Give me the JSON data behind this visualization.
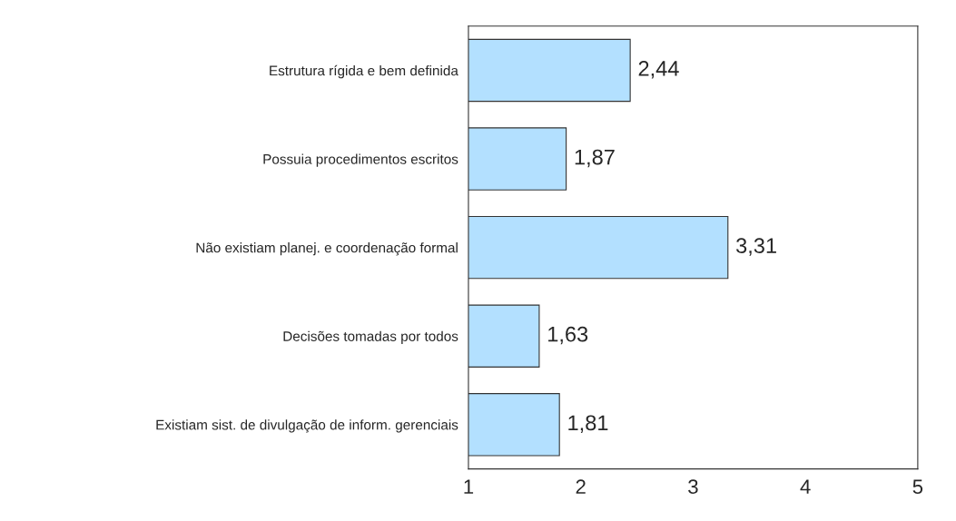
{
  "chart_data": {
    "type": "bar",
    "orientation": "horizontal",
    "categories": [
      "Estrutura rígida e bem definida",
      "Possuia procedimentos escritos",
      "Não existiam planej. e coordenação formal",
      "Decisões tomadas por todos",
      "Existiam sist. de divulgação de inform. gerenciais"
    ],
    "values": [
      2.44,
      1.87,
      3.31,
      1.63,
      1.81
    ],
    "value_labels": [
      "2,44",
      "1,87",
      "3,31",
      "1,63",
      "1,81"
    ],
    "color": "#b3e0ff",
    "xlim": [
      1,
      5
    ],
    "xticks": [
      1,
      2,
      3,
      4,
      5
    ],
    "grid": false,
    "legend": false
  }
}
